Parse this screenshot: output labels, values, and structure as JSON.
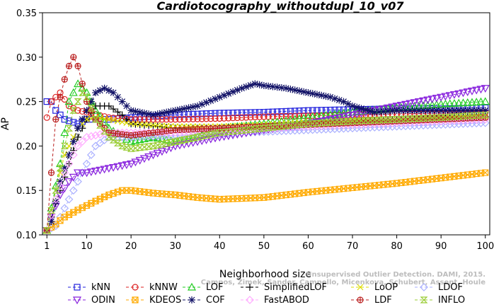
{
  "chart_data": {
    "type": "line",
    "title": "Cardiotocography_withoutdupl_10_v07",
    "xlabel": "Neighborhood size",
    "ylabel": "AP",
    "xlim": [
      0,
      101
    ],
    "ylim": [
      0.1,
      0.35
    ],
    "xticks": [
      1,
      10,
      20,
      30,
      40,
      50,
      60,
      70,
      80,
      90,
      100
    ],
    "yticks": [
      0.1,
      0.15,
      0.2,
      0.25,
      0.3,
      0.35
    ],
    "ytick_labels": [
      "0.10",
      "0.15",
      "0.20",
      "0.25",
      "0.30",
      "0.35"
    ],
    "grid": false,
    "legend_position": "bottom",
    "watermark": [
      "Unsupervised Outlier Detection. DAMI, 2015.",
      "Campos, Zimek, Sander, Campello, Micenkova, Schubert, Assent, Houle"
    ],
    "series": [
      {
        "name": "kNN",
        "color": "#2222dd",
        "marker": "square",
        "points": [
          [
            1,
            0.25
          ],
          [
            2,
            0.25
          ],
          [
            3,
            0.24
          ],
          [
            5,
            0.23
          ],
          [
            8,
            0.225
          ],
          [
            10,
            0.23
          ],
          [
            15,
            0.23
          ],
          [
            20,
            0.232
          ],
          [
            30,
            0.235
          ],
          [
            40,
            0.237
          ],
          [
            50,
            0.238
          ],
          [
            60,
            0.24
          ],
          [
            70,
            0.241
          ],
          [
            80,
            0.242
          ],
          [
            90,
            0.242
          ],
          [
            100,
            0.243
          ]
        ]
      },
      {
        "name": "kNNW",
        "color": "#dd2222",
        "marker": "circle",
        "points": [
          [
            1,
            0.232
          ],
          [
            2,
            0.25
          ],
          [
            4,
            0.26
          ],
          [
            6,
            0.245
          ],
          [
            8,
            0.24
          ],
          [
            10,
            0.238
          ],
          [
            15,
            0.232
          ],
          [
            20,
            0.23
          ],
          [
            30,
            0.23
          ],
          [
            40,
            0.231
          ],
          [
            50,
            0.233
          ],
          [
            60,
            0.234
          ],
          [
            70,
            0.235
          ],
          [
            80,
            0.236
          ],
          [
            90,
            0.237
          ],
          [
            100,
            0.238
          ]
        ]
      },
      {
        "name": "LOF",
        "color": "#22cc22",
        "marker": "triangle",
        "points": [
          [
            1,
            0.105
          ],
          [
            2,
            0.13
          ],
          [
            4,
            0.18
          ],
          [
            6,
            0.25
          ],
          [
            8,
            0.27
          ],
          [
            10,
            0.26
          ],
          [
            12,
            0.24
          ],
          [
            15,
            0.22
          ],
          [
            18,
            0.21
          ],
          [
            20,
            0.205
          ],
          [
            25,
            0.21
          ],
          [
            30,
            0.205
          ],
          [
            35,
            0.21
          ],
          [
            40,
            0.22
          ],
          [
            50,
            0.225
          ],
          [
            60,
            0.232
          ],
          [
            70,
            0.238
          ],
          [
            80,
            0.243
          ],
          [
            90,
            0.247
          ],
          [
            100,
            0.25
          ]
        ]
      },
      {
        "name": "SimplifiedLOF",
        "color": "#000000",
        "marker": "plus",
        "points": [
          [
            1,
            0.105
          ],
          [
            2,
            0.12
          ],
          [
            4,
            0.15
          ],
          [
            6,
            0.18
          ],
          [
            8,
            0.21
          ],
          [
            10,
            0.23
          ],
          [
            12,
            0.245
          ],
          [
            15,
            0.245
          ],
          [
            18,
            0.235
          ],
          [
            20,
            0.225
          ],
          [
            30,
            0.22
          ],
          [
            40,
            0.22
          ],
          [
            50,
            0.222
          ],
          [
            60,
            0.225
          ],
          [
            70,
            0.228
          ],
          [
            80,
            0.23
          ],
          [
            90,
            0.232
          ],
          [
            100,
            0.233
          ]
        ]
      },
      {
        "name": "LoOP",
        "color": "#dddd00",
        "marker": "x",
        "points": [
          [
            1,
            0.105
          ],
          [
            3,
            0.15
          ],
          [
            5,
            0.19
          ],
          [
            8,
            0.22
          ],
          [
            10,
            0.23
          ],
          [
            12,
            0.232
          ],
          [
            15,
            0.23
          ],
          [
            20,
            0.225
          ],
          [
            30,
            0.222
          ],
          [
            40,
            0.222
          ],
          [
            50,
            0.224
          ],
          [
            60,
            0.227
          ],
          [
            70,
            0.229
          ],
          [
            80,
            0.23
          ],
          [
            90,
            0.231
          ],
          [
            100,
            0.232
          ]
        ]
      },
      {
        "name": "LDOF",
        "color": "#aab0ff",
        "marker": "diamond",
        "points": [
          [
            1,
            0.105
          ],
          [
            3,
            0.11
          ],
          [
            5,
            0.13
          ],
          [
            8,
            0.16
          ],
          [
            10,
            0.18
          ],
          [
            12,
            0.2
          ],
          [
            15,
            0.21
          ],
          [
            20,
            0.21
          ],
          [
            30,
            0.212
          ],
          [
            40,
            0.214
          ],
          [
            50,
            0.216
          ],
          [
            60,
            0.218
          ],
          [
            70,
            0.22
          ],
          [
            80,
            0.222
          ],
          [
            90,
            0.224
          ],
          [
            100,
            0.226
          ]
        ]
      },
      {
        "name": "ODIN",
        "color": "#8822dd",
        "marker": "triangle-down",
        "points": [
          [
            1,
            0.105
          ],
          [
            2,
            0.12
          ],
          [
            4,
            0.145
          ],
          [
            6,
            0.16
          ],
          [
            8,
            0.17
          ],
          [
            10,
            0.17
          ],
          [
            12,
            0.172
          ],
          [
            15,
            0.175
          ],
          [
            20,
            0.18
          ],
          [
            25,
            0.19
          ],
          [
            30,
            0.2
          ],
          [
            40,
            0.21
          ],
          [
            50,
            0.218
          ],
          [
            60,
            0.225
          ],
          [
            70,
            0.235
          ],
          [
            80,
            0.245
          ],
          [
            90,
            0.255
          ],
          [
            100,
            0.265
          ]
        ]
      },
      {
        "name": "KDEOS",
        "color": "#ffaa00",
        "marker": "square-x",
        "points": [
          [
            1,
            0.105
          ],
          [
            3,
            0.112
          ],
          [
            5,
            0.12
          ],
          [
            8,
            0.128
          ],
          [
            10,
            0.133
          ],
          [
            12,
            0.138
          ],
          [
            15,
            0.145
          ],
          [
            18,
            0.15
          ],
          [
            20,
            0.15
          ],
          [
            25,
            0.147
          ],
          [
            30,
            0.145
          ],
          [
            35,
            0.142
          ],
          [
            40,
            0.14
          ],
          [
            50,
            0.142
          ],
          [
            60,
            0.148
          ],
          [
            70,
            0.153
          ],
          [
            80,
            0.158
          ],
          [
            90,
            0.164
          ],
          [
            100,
            0.17
          ]
        ]
      },
      {
        "name": "COF",
        "color": "#111166",
        "marker": "star",
        "points": [
          [
            1,
            0.105
          ],
          [
            2,
            0.115
          ],
          [
            4,
            0.16
          ],
          [
            6,
            0.19
          ],
          [
            8,
            0.22
          ],
          [
            10,
            0.24
          ],
          [
            12,
            0.26
          ],
          [
            14,
            0.265
          ],
          [
            16,
            0.26
          ],
          [
            18,
            0.25
          ],
          [
            20,
            0.24
          ],
          [
            25,
            0.235
          ],
          [
            30,
            0.24
          ],
          [
            35,
            0.245
          ],
          [
            40,
            0.255
          ],
          [
            45,
            0.265
          ],
          [
            48,
            0.27
          ],
          [
            50,
            0.268
          ],
          [
            55,
            0.265
          ],
          [
            60,
            0.26
          ],
          [
            65,
            0.255
          ],
          [
            68,
            0.25
          ],
          [
            70,
            0.245
          ],
          [
            75,
            0.238
          ],
          [
            80,
            0.24
          ],
          [
            90,
            0.24
          ],
          [
            100,
            0.24
          ]
        ]
      },
      {
        "name": "FastABOD",
        "color": "#ffaaff",
        "marker": "diamond",
        "points": [
          [
            1,
            0.105
          ],
          [
            3,
            0.14
          ],
          [
            5,
            0.17
          ],
          [
            8,
            0.2
          ],
          [
            10,
            0.21
          ],
          [
            15,
            0.215
          ],
          [
            20,
            0.215
          ],
          [
            30,
            0.215
          ],
          [
            40,
            0.218
          ],
          [
            50,
            0.22
          ],
          [
            60,
            0.222
          ],
          [
            70,
            0.224
          ],
          [
            80,
            0.226
          ],
          [
            90,
            0.228
          ],
          [
            100,
            0.23
          ]
        ]
      },
      {
        "name": "LDF",
        "color": "#bb2222",
        "marker": "circle-plus",
        "points": [
          [
            1,
            0.105
          ],
          [
            2,
            0.17
          ],
          [
            3,
            0.23
          ],
          [
            4,
            0.255
          ],
          [
            5,
            0.275
          ],
          [
            6,
            0.29
          ],
          [
            7,
            0.3
          ],
          [
            8,
            0.29
          ],
          [
            9,
            0.27
          ],
          [
            10,
            0.25
          ],
          [
            12,
            0.23
          ],
          [
            15,
            0.215
          ],
          [
            20,
            0.212
          ],
          [
            25,
            0.215
          ],
          [
            30,
            0.218
          ],
          [
            40,
            0.22
          ],
          [
            50,
            0.222
          ],
          [
            60,
            0.224
          ],
          [
            70,
            0.226
          ],
          [
            80,
            0.228
          ],
          [
            90,
            0.23
          ],
          [
            100,
            0.232
          ]
        ]
      },
      {
        "name": "INFLO",
        "color": "#99cc33",
        "marker": "hourglass",
        "points": [
          [
            1,
            0.105
          ],
          [
            3,
            0.15
          ],
          [
            5,
            0.2
          ],
          [
            7,
            0.24
          ],
          [
            9,
            0.26
          ],
          [
            10,
            0.255
          ],
          [
            12,
            0.23
          ],
          [
            15,
            0.21
          ],
          [
            18,
            0.2
          ],
          [
            20,
            0.197
          ],
          [
            25,
            0.2
          ],
          [
            30,
            0.205
          ],
          [
            40,
            0.215
          ],
          [
            50,
            0.22
          ],
          [
            60,
            0.225
          ],
          [
            70,
            0.228
          ],
          [
            80,
            0.23
          ],
          [
            90,
            0.232
          ],
          [
            100,
            0.235
          ]
        ]
      }
    ]
  }
}
